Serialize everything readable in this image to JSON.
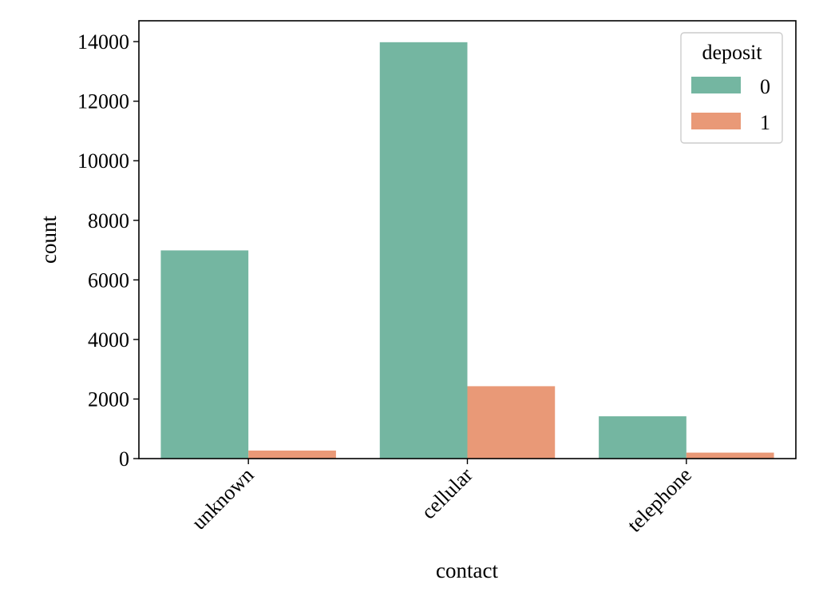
{
  "chart_data": {
    "type": "bar",
    "categories": [
      "unknown",
      "cellular",
      "telephone"
    ],
    "series": [
      {
        "name": "0",
        "values": [
          6990,
          13980,
          1420
        ],
        "color": "#74b6a1"
      },
      {
        "name": "1",
        "values": [
          270,
          2430,
          200
        ],
        "color": "#e99977"
      }
    ],
    "xlabel": "contact",
    "ylabel": "count",
    "ylim": [
      0,
      14700
    ],
    "yticks": [
      0,
      2000,
      4000,
      6000,
      8000,
      10000,
      12000,
      14000
    ],
    "ytick_labels": [
      "0",
      "2000",
      "4000",
      "6000",
      "8000",
      "10000",
      "12000",
      "14000"
    ],
    "xtick_rotation_deg": 45,
    "grid": false,
    "legend": {
      "title": "deposit",
      "position": "top-right",
      "labels": [
        "0",
        "1"
      ]
    }
  }
}
